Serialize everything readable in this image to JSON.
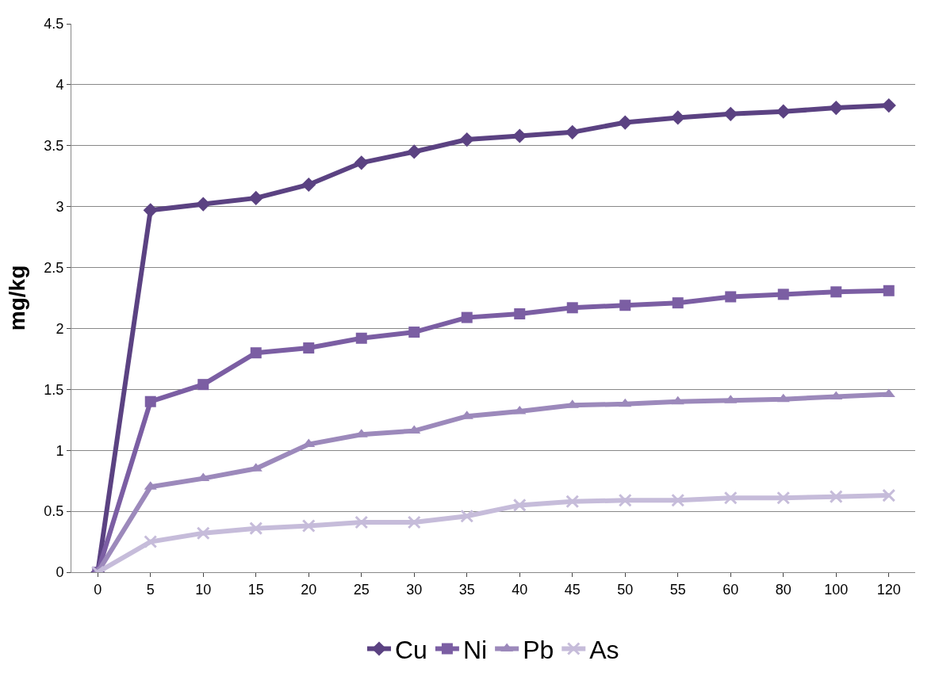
{
  "chart_data": {
    "type": "line",
    "ylabel": "mg/kg",
    "categories": [
      "0",
      "5",
      "10",
      "15",
      "20",
      "25",
      "30",
      "35",
      "40",
      "45",
      "50",
      "55",
      "60",
      "80",
      "100",
      "120"
    ],
    "ylim": [
      0,
      4.5
    ],
    "yticks": [
      0,
      0.5,
      1,
      1.5,
      2,
      2.5,
      3,
      3.5,
      4,
      4.5
    ],
    "grid": "y",
    "legend": "bottom",
    "series": [
      {
        "name": "Cu",
        "color": "#5b4282",
        "marker": "diamond",
        "values": [
          0,
          2.97,
          3.02,
          3.07,
          3.18,
          3.36,
          3.45,
          3.55,
          3.58,
          3.61,
          3.69,
          3.73,
          3.76,
          3.78,
          3.81,
          3.83
        ]
      },
      {
        "name": "Ni",
        "color": "#7b5ea3",
        "marker": "square",
        "values": [
          0,
          1.4,
          1.54,
          1.8,
          1.84,
          1.92,
          1.97,
          2.09,
          2.12,
          2.17,
          2.19,
          2.21,
          2.26,
          2.28,
          2.3,
          2.31
        ]
      },
      {
        "name": "Pb",
        "color": "#9c89bb",
        "marker": "triangle",
        "values": [
          0,
          0.7,
          0.77,
          0.85,
          1.05,
          1.13,
          1.16,
          1.28,
          1.32,
          1.37,
          1.38,
          1.4,
          1.41,
          1.42,
          1.44,
          1.46
        ]
      },
      {
        "name": "As",
        "color": "#c6bcda",
        "marker": "cross",
        "values": [
          0,
          0.25,
          0.32,
          0.36,
          0.38,
          0.41,
          0.41,
          0.46,
          0.55,
          0.58,
          0.59,
          0.59,
          0.61,
          0.61,
          0.62,
          0.63
        ]
      }
    ]
  }
}
